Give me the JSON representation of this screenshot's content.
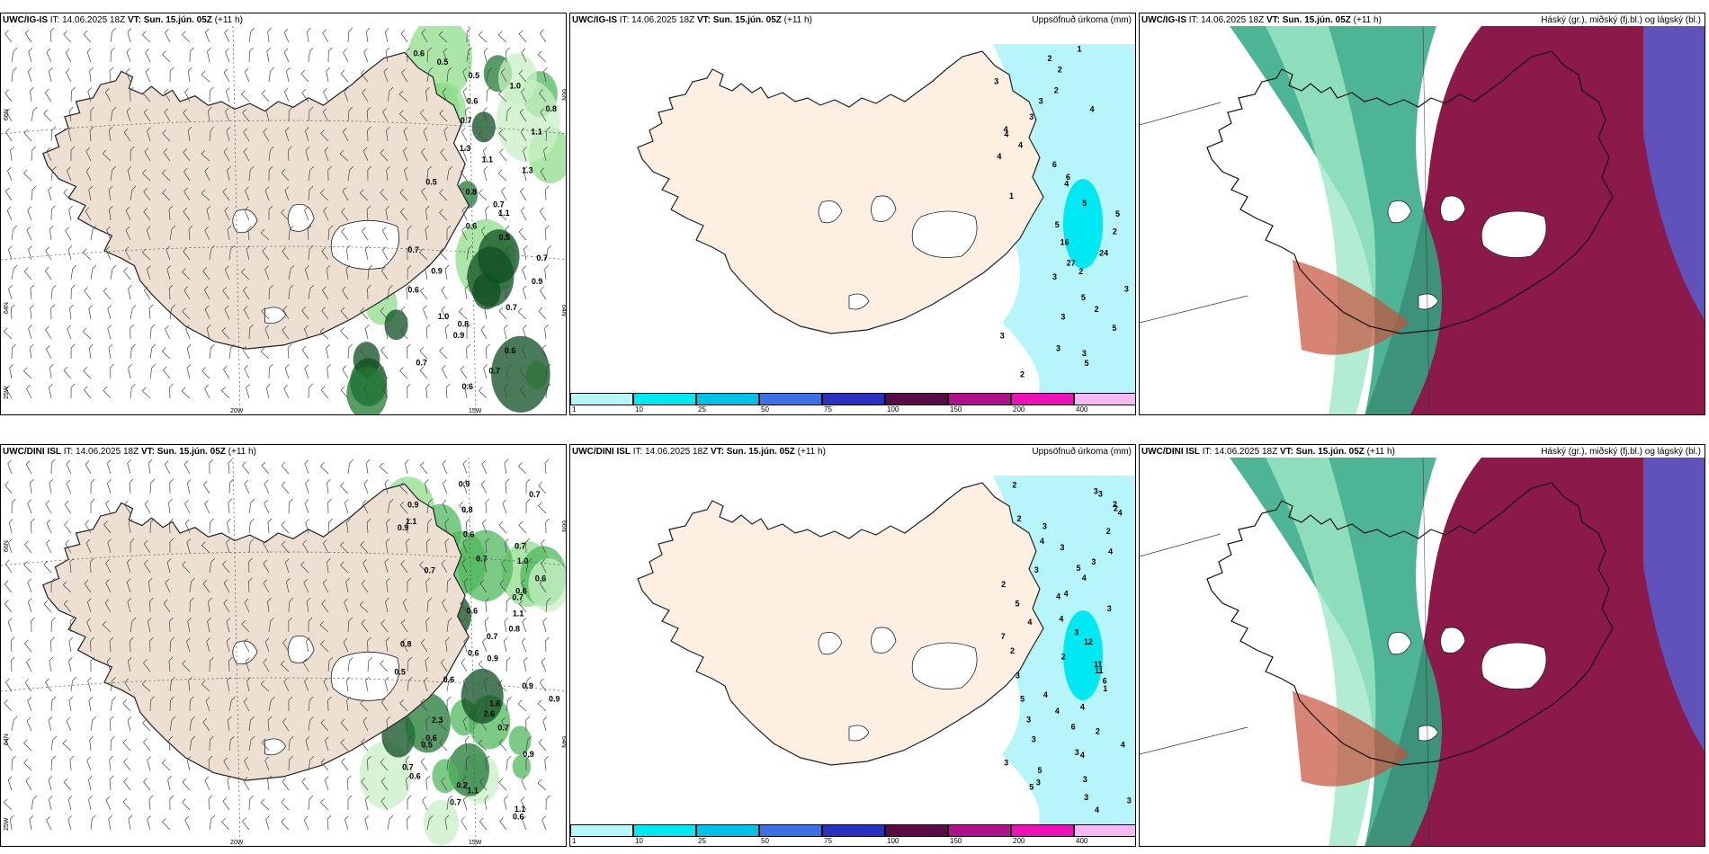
{
  "common": {
    "it_label": "IT:",
    "it_value": "14.06.2025 18Z",
    "vt_label": "VT:",
    "vt_value": "Sun. 15.jún. 05Z",
    "lead": "(+11 h)"
  },
  "rows": [
    {
      "model": "UWC/IG-IS"
    },
    {
      "model": "UWC/DINI ISL"
    }
  ],
  "precip_title": "Uppsöfnuð úrkoma (mm)",
  "cloud_title": "Háský (gr.), miðský (fj.bl.) og lágský (bl.)",
  "axis_labels": {
    "lon20": "20W",
    "lon15": "15W",
    "lat66": "66N",
    "lat64": "64N",
    "lon25": "25W"
  },
  "colorbar": {
    "labels": [
      "1",
      "10",
      "25",
      "50",
      "75",
      "100",
      "150",
      "200",
      "400"
    ],
    "colors": [
      "#b6f6fa",
      "#00e8f2",
      "#00c2e6",
      "#3d6fe6",
      "#2a30c0",
      "#5a0a45",
      "#b0108a",
      "#ee10b8",
      "#f8b8f4"
    ]
  },
  "colors": {
    "land": "#fdf0e2",
    "land_wind": "#ede0d2",
    "precip_fill": "#b6f6fa",
    "cloud_high": "#2ea883",
    "cloud_mid": "#8b1a4a",
    "cloud_low": "#5a5ac8"
  },
  "wind_values_top": [
    "0.6",
    "0.5",
    "0.5",
    "1.0",
    "0.6",
    "0.8",
    "0.7",
    "1.1",
    "1.3",
    "1.1",
    "1.3",
    "0.5",
    "0.8",
    "0.7",
    "1.1",
    "0.6",
    "0.5",
    "0.7",
    "0.7",
    "0.9",
    "0.9",
    "0.6",
    "0.7",
    "1.0",
    "0.8",
    "0.9",
    "0.6",
    "0.7",
    "0.7",
    "0.6"
  ],
  "wind_values_bottom": [
    "0.9",
    "0.7",
    "0.9",
    "0.8",
    "1.1",
    "0.9",
    "0.6",
    "0.7",
    "0.7",
    "1.0",
    "0.7",
    "0.6",
    "0.6",
    "0.7",
    "0.6",
    "1.1",
    "0.8",
    "0.7",
    "0.8",
    "0.6",
    "0.9",
    "0.5",
    "0.6",
    "0.9",
    "0.9",
    "1.6",
    "2.6",
    "2.3",
    "0.7",
    "0.6",
    "0.5",
    "0.9",
    "0.7",
    "0.6",
    "0.2",
    "1.1",
    "0.7",
    "1.1",
    "0.6"
  ],
  "precip_values_top": [
    "1",
    "2",
    "2",
    "3",
    "2",
    "3",
    "4",
    "3",
    "4",
    "4",
    "4",
    "4",
    "6",
    "6",
    "4",
    "1",
    "5",
    "5",
    "5",
    "2",
    "16",
    "24",
    "27",
    "2",
    "3",
    "3",
    "5",
    "2",
    "3",
    "5",
    "3",
    "3",
    "3",
    "5",
    "2"
  ],
  "precip_values_bottom": [
    "2",
    "3",
    "3",
    "2",
    "2",
    "4",
    "2",
    "3",
    "2",
    "4",
    "3",
    "4",
    "3",
    "5",
    "3",
    "4",
    "2",
    "4",
    "4",
    "5",
    "3",
    "4",
    "4",
    "3",
    "7",
    "12",
    "2",
    "2",
    "11",
    "11",
    "3",
    "6",
    "1",
    "4",
    "5",
    "4",
    "4",
    "3",
    "6",
    "2",
    "3",
    "4",
    "3",
    "4",
    "3",
    "5",
    "3",
    "3",
    "5",
    "3",
    "3",
    "4"
  ]
}
